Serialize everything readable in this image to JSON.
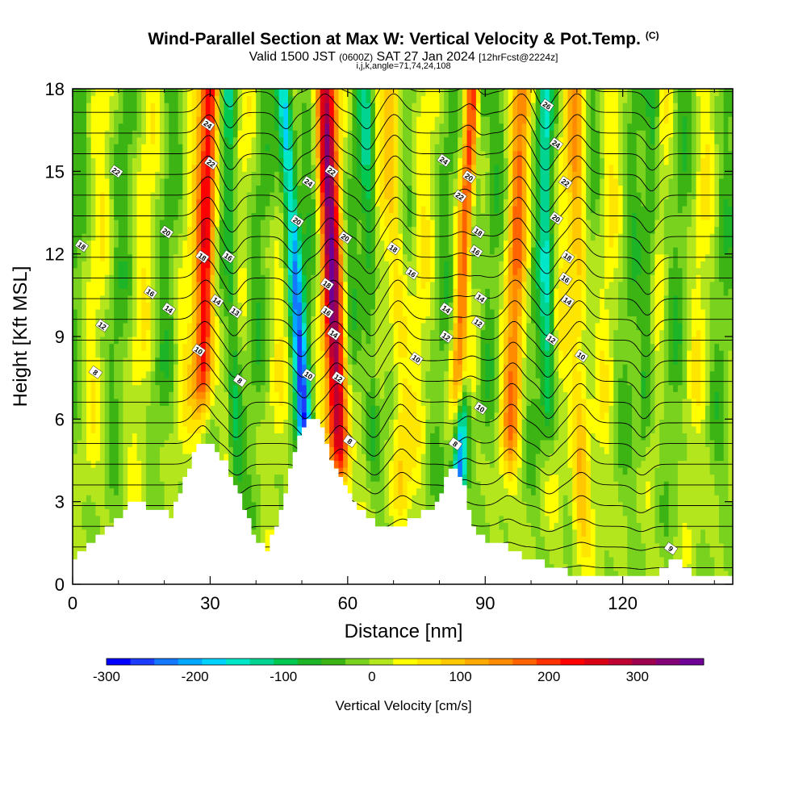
{
  "header": {
    "title": "Wind-Parallel Section at Max W: Vertical Velocity & Pot.Temp.",
    "title_suffix": "(C)",
    "valid_prefix": "Valid 1500 JST",
    "valid_zulu": "(0600Z)",
    "valid_date": "SAT 27 Jan 2024",
    "forecast_tag": "[12hrFcst@2224z]",
    "indices": "i,j,k,angle=71,74,24,108"
  },
  "chart_data": {
    "type": "heatmap",
    "xlabel": "Distance [nm]",
    "ylabel": "Height [Kft MSL]",
    "xlim": [
      0,
      144
    ],
    "ylim": [
      0,
      18
    ],
    "x_ticks": [
      0,
      30,
      60,
      90,
      120
    ],
    "y_ticks": [
      0,
      3,
      6,
      9,
      12,
      15,
      18
    ],
    "colorbar": {
      "label": "Vertical Velocity [cm/s]",
      "range": [
        -300,
        375
      ],
      "ticks": [
        -300,
        -200,
        -100,
        0,
        100,
        200,
        300
      ],
      "colors": [
        "#0000ff",
        "#1c3cff",
        "#1478ff",
        "#00a8ff",
        "#00d2ff",
        "#00e6c8",
        "#00d490",
        "#00c850",
        "#1eb428",
        "#3cb414",
        "#78d21e",
        "#b4e61e",
        "#ffff00",
        "#ffe600",
        "#ffc800",
        "#ffaa00",
        "#ff8c00",
        "#ff6400",
        "#ff3200",
        "#ff0000",
        "#dc0014",
        "#be0032",
        "#a00050",
        "#820078",
        "#6e0096"
      ]
    },
    "terrain_kft": [
      [
        0,
        1.0
      ],
      [
        3,
        1.4
      ],
      [
        6,
        1.8
      ],
      [
        9,
        2.3
      ],
      [
        12,
        2.9
      ],
      [
        15,
        2.9
      ],
      [
        18,
        2.7
      ],
      [
        21,
        2.5
      ],
      [
        24,
        3.9
      ],
      [
        27,
        5.1
      ],
      [
        30,
        5.1
      ],
      [
        33,
        4.4
      ],
      [
        36,
        3.3
      ],
      [
        39,
        1.8
      ],
      [
        42,
        1.3
      ],
      [
        45,
        2.7
      ],
      [
        48,
        4.9
      ],
      [
        50,
        5.8
      ],
      [
        52,
        6.1
      ],
      [
        54,
        5.6
      ],
      [
        56,
        4.4
      ],
      [
        59,
        3.5
      ],
      [
        62,
        2.7
      ],
      [
        65,
        2.3
      ],
      [
        68,
        2.0
      ],
      [
        72,
        2.2
      ],
      [
        76,
        2.6
      ],
      [
        79,
        2.9
      ],
      [
        81,
        3.8
      ],
      [
        83,
        4.3
      ],
      [
        85,
        3.6
      ],
      [
        87,
        2.0
      ],
      [
        90,
        1.6
      ],
      [
        94,
        1.4
      ],
      [
        98,
        1.0
      ],
      [
        102,
        0.8
      ],
      [
        106,
        0.5
      ],
      [
        110,
        0.3
      ],
      [
        114,
        0.3
      ],
      [
        118,
        0.3
      ],
      [
        122,
        0.3
      ],
      [
        126,
        0.3
      ],
      [
        129,
        0.6
      ],
      [
        131,
        1.0
      ],
      [
        133,
        0.6
      ],
      [
        136,
        0.3
      ],
      [
        140,
        0.3
      ],
      [
        144,
        0.3
      ]
    ],
    "updraft_bands": [
      {
        "x_base": 28,
        "x_top": 30,
        "z_base": 8,
        "w_max": 250
      },
      {
        "x_base": 59,
        "x_top": 55,
        "z_base": 5.5,
        "w_max": 300
      },
      {
        "x_base": 84,
        "x_top": 88,
        "z_base": 8,
        "w_max": 280
      },
      {
        "x_base": 95,
        "x_top": 98,
        "z_base": 6,
        "w_max": 120
      },
      {
        "x_base": 111,
        "x_top": 110,
        "z_base": 3,
        "w_max": 110
      },
      {
        "x_base": 72,
        "x_top": 70,
        "z_base": 4,
        "w_max": 90
      }
    ],
    "downdraft_bands": [
      {
        "x_base": 52,
        "x_top": 46,
        "z_base": 6,
        "w_min": -220
      },
      {
        "x_base": 83,
        "x_top": 89,
        "z_base": 4,
        "w_min": -260
      },
      {
        "x_base": 36,
        "x_top": 34,
        "z_base": 5,
        "w_min": -100
      },
      {
        "x_base": 104,
        "x_top": 103,
        "z_base": 7,
        "w_min": -110
      },
      {
        "x_base": 66,
        "x_top": 64,
        "z_base": 6,
        "w_min": -90
      },
      {
        "x_base": 124,
        "x_top": 127,
        "z_base": 6,
        "w_min": -80
      }
    ],
    "theta_contour_labels": [
      {
        "text": "24",
        "x": 29.5,
        "z": 16.7
      },
      {
        "text": "22",
        "x": 30.2,
        "z": 15.3
      },
      {
        "text": "22",
        "x": 9.5,
        "z": 15.0
      },
      {
        "text": "20",
        "x": 20.5,
        "z": 12.8
      },
      {
        "text": "18",
        "x": 2.0,
        "z": 12.3
      },
      {
        "text": "18",
        "x": 28.3,
        "z": 11.9
      },
      {
        "text": "16",
        "x": 34.0,
        "z": 11.9
      },
      {
        "text": "16",
        "x": 17.0,
        "z": 10.6
      },
      {
        "text": "14",
        "x": 21.0,
        "z": 10.0
      },
      {
        "text": "14",
        "x": 31.5,
        "z": 10.3
      },
      {
        "text": "13",
        "x": 35.5,
        "z": 9.9
      },
      {
        "text": "12",
        "x": 6.5,
        "z": 9.4
      },
      {
        "text": "10",
        "x": 27.5,
        "z": 8.5
      },
      {
        "text": "8",
        "x": 5.0,
        "z": 7.7
      },
      {
        "text": "8",
        "x": 36.5,
        "z": 7.4
      },
      {
        "text": "24",
        "x": 51.5,
        "z": 14.6
      },
      {
        "text": "22",
        "x": 56.5,
        "z": 15.0
      },
      {
        "text": "20",
        "x": 49.0,
        "z": 13.2
      },
      {
        "text": "20",
        "x": 59.5,
        "z": 12.6
      },
      {
        "text": "18",
        "x": 55.5,
        "z": 10.9
      },
      {
        "text": "18",
        "x": 70.0,
        "z": 12.2
      },
      {
        "text": "16",
        "x": 55.5,
        "z": 9.9
      },
      {
        "text": "16",
        "x": 74.0,
        "z": 11.3
      },
      {
        "text": "14",
        "x": 57.0,
        "z": 9.1
      },
      {
        "text": "10",
        "x": 51.5,
        "z": 7.6
      },
      {
        "text": "12",
        "x": 58.0,
        "z": 7.5
      },
      {
        "text": "10",
        "x": 75.0,
        "z": 8.2
      },
      {
        "text": "8",
        "x": 60.5,
        "z": 5.2
      },
      {
        "text": "24",
        "x": 81.0,
        "z": 15.4
      },
      {
        "text": "22",
        "x": 84.5,
        "z": 14.1
      },
      {
        "text": "20",
        "x": 86.5,
        "z": 14.8
      },
      {
        "text": "18",
        "x": 88.5,
        "z": 12.8
      },
      {
        "text": "16",
        "x": 88.0,
        "z": 12.1
      },
      {
        "text": "14",
        "x": 81.5,
        "z": 10.0
      },
      {
        "text": "14",
        "x": 89.0,
        "z": 10.4
      },
      {
        "text": "12",
        "x": 81.5,
        "z": 9.0
      },
      {
        "text": "12",
        "x": 88.5,
        "z": 9.5
      },
      {
        "text": "10",
        "x": 89.0,
        "z": 6.4
      },
      {
        "text": "8",
        "x": 83.5,
        "z": 5.1
      },
      {
        "text": "26",
        "x": 103.5,
        "z": 17.4
      },
      {
        "text": "24",
        "x": 105.5,
        "z": 16.0
      },
      {
        "text": "22",
        "x": 107.5,
        "z": 14.6
      },
      {
        "text": "20",
        "x": 105.5,
        "z": 13.3
      },
      {
        "text": "18",
        "x": 108.0,
        "z": 11.9
      },
      {
        "text": "16",
        "x": 107.5,
        "z": 11.1
      },
      {
        "text": "14",
        "x": 108.0,
        "z": 10.3
      },
      {
        "text": "12",
        "x": 104.5,
        "z": 8.9
      },
      {
        "text": "10",
        "x": 111.0,
        "z": 8.3
      },
      {
        "text": "9",
        "x": 130.5,
        "z": 1.3
      }
    ]
  }
}
